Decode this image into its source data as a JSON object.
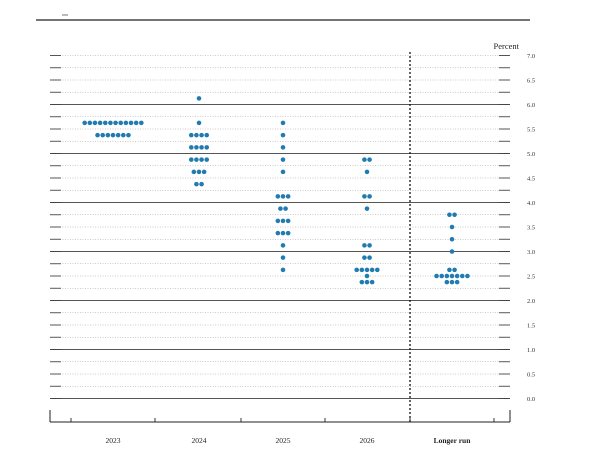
{
  "chart_data": {
    "type": "scatter",
    "subtype": "dot-plot",
    "title": "",
    "ylabel": "Percent",
    "ylim": [
      0,
      7
    ],
    "yticks": [
      0,
      0.5,
      1,
      1.5,
      2,
      2.5,
      3,
      3.5,
      4,
      4.5,
      5,
      5.5,
      6,
      6.5,
      7
    ],
    "ytick_labels": [
      "0.0",
      "0.5",
      "1.0",
      "1.5",
      "2.0",
      "2.5",
      "3.0",
      "3.5",
      "4.0",
      "4.5",
      "5.0",
      "5.5",
      "6.0",
      "6.5",
      "7.0"
    ],
    "categories": [
      "2023",
      "2024",
      "2025",
      "2026",
      "Longer run"
    ],
    "grid": true,
    "dot_color": "#1f7bb0",
    "dots": [
      {
        "category": "2023",
        "y": 5.625,
        "count": 12
      },
      {
        "category": "2023",
        "y": 5.375,
        "count": 7
      },
      {
        "category": "2024",
        "y": 6.125,
        "count": 1
      },
      {
        "category": "2024",
        "y": 5.625,
        "count": 1
      },
      {
        "category": "2024",
        "y": 5.375,
        "count": 4
      },
      {
        "category": "2024",
        "y": 5.125,
        "count": 4
      },
      {
        "category": "2024",
        "y": 4.875,
        "count": 4
      },
      {
        "category": "2024",
        "y": 4.625,
        "count": 3
      },
      {
        "category": "2024",
        "y": 4.375,
        "count": 2
      },
      {
        "category": "2025",
        "y": 5.625,
        "count": 1
      },
      {
        "category": "2025",
        "y": 5.375,
        "count": 1
      },
      {
        "category": "2025",
        "y": 5.125,
        "count": 1
      },
      {
        "category": "2025",
        "y": 4.875,
        "count": 1
      },
      {
        "category": "2025",
        "y": 4.625,
        "count": 1
      },
      {
        "category": "2025",
        "y": 4.125,
        "count": 3
      },
      {
        "category": "2025",
        "y": 3.875,
        "count": 2
      },
      {
        "category": "2025",
        "y": 3.625,
        "count": 3
      },
      {
        "category": "2025",
        "y": 3.375,
        "count": 3
      },
      {
        "category": "2025",
        "y": 3.125,
        "count": 1
      },
      {
        "category": "2025",
        "y": 2.875,
        "count": 1
      },
      {
        "category": "2025",
        "y": 2.625,
        "count": 1
      },
      {
        "category": "2026",
        "y": 4.875,
        "count": 2
      },
      {
        "category": "2026",
        "y": 4.625,
        "count": 1
      },
      {
        "category": "2026",
        "y": 4.125,
        "count": 2
      },
      {
        "category": "2026",
        "y": 3.875,
        "count": 1
      },
      {
        "category": "2026",
        "y": 3.125,
        "count": 2
      },
      {
        "category": "2026",
        "y": 2.875,
        "count": 2
      },
      {
        "category": "2026",
        "y": 2.625,
        "count": 5
      },
      {
        "category": "2026",
        "y": 2.5,
        "count": 1
      },
      {
        "category": "2026",
        "y": 2.375,
        "count": 3
      },
      {
        "category": "Longer run",
        "y": 3.75,
        "count": 2
      },
      {
        "category": "Longer run",
        "y": 3.5,
        "count": 1
      },
      {
        "category": "Longer run",
        "y": 3.25,
        "count": 1
      },
      {
        "category": "Longer run",
        "y": 3.0,
        "count": 1
      },
      {
        "category": "Longer run",
        "y": 2.625,
        "count": 2
      },
      {
        "category": "Longer run",
        "y": 2.5,
        "count": 7
      },
      {
        "category": "Longer run",
        "y": 2.375,
        "count": 3
      }
    ]
  }
}
